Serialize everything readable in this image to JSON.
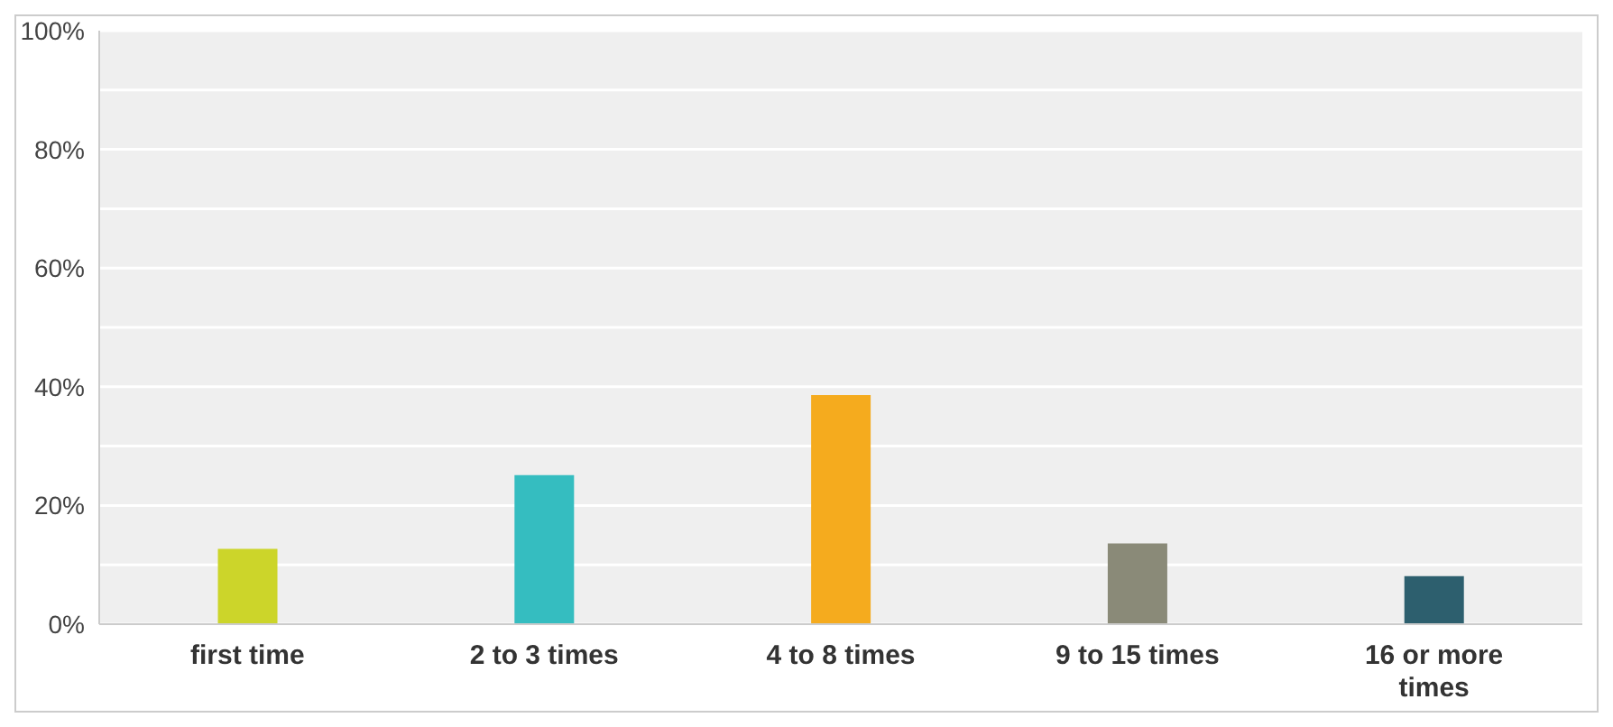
{
  "chart_data": {
    "type": "bar",
    "categories": [
      "first time",
      "2 to 3 times",
      "4 to 8 times",
      "9 to 15 times",
      "16 or more times"
    ],
    "values": [
      12.7,
      25.1,
      38.6,
      13.6,
      8.1
    ],
    "colors": [
      "#ccd52a",
      "#35bdc0",
      "#f5ab1e",
      "#8a8a78",
      "#2d5f6e"
    ],
    "ylim": [
      0,
      100
    ],
    "yticks": [
      {
        "value": 0,
        "label": "0%"
      },
      {
        "value": 10,
        "label": null
      },
      {
        "value": 20,
        "label": "20%"
      },
      {
        "value": 30,
        "label": null
      },
      {
        "value": 40,
        "label": "40%"
      },
      {
        "value": 50,
        "label": null
      },
      {
        "value": 60,
        "label": "60%"
      },
      {
        "value": 70,
        "label": null
      },
      {
        "value": 80,
        "label": "80%"
      },
      {
        "value": 90,
        "label": null
      },
      {
        "value": 100,
        "label": "100%"
      }
    ],
    "grid": "y"
  }
}
